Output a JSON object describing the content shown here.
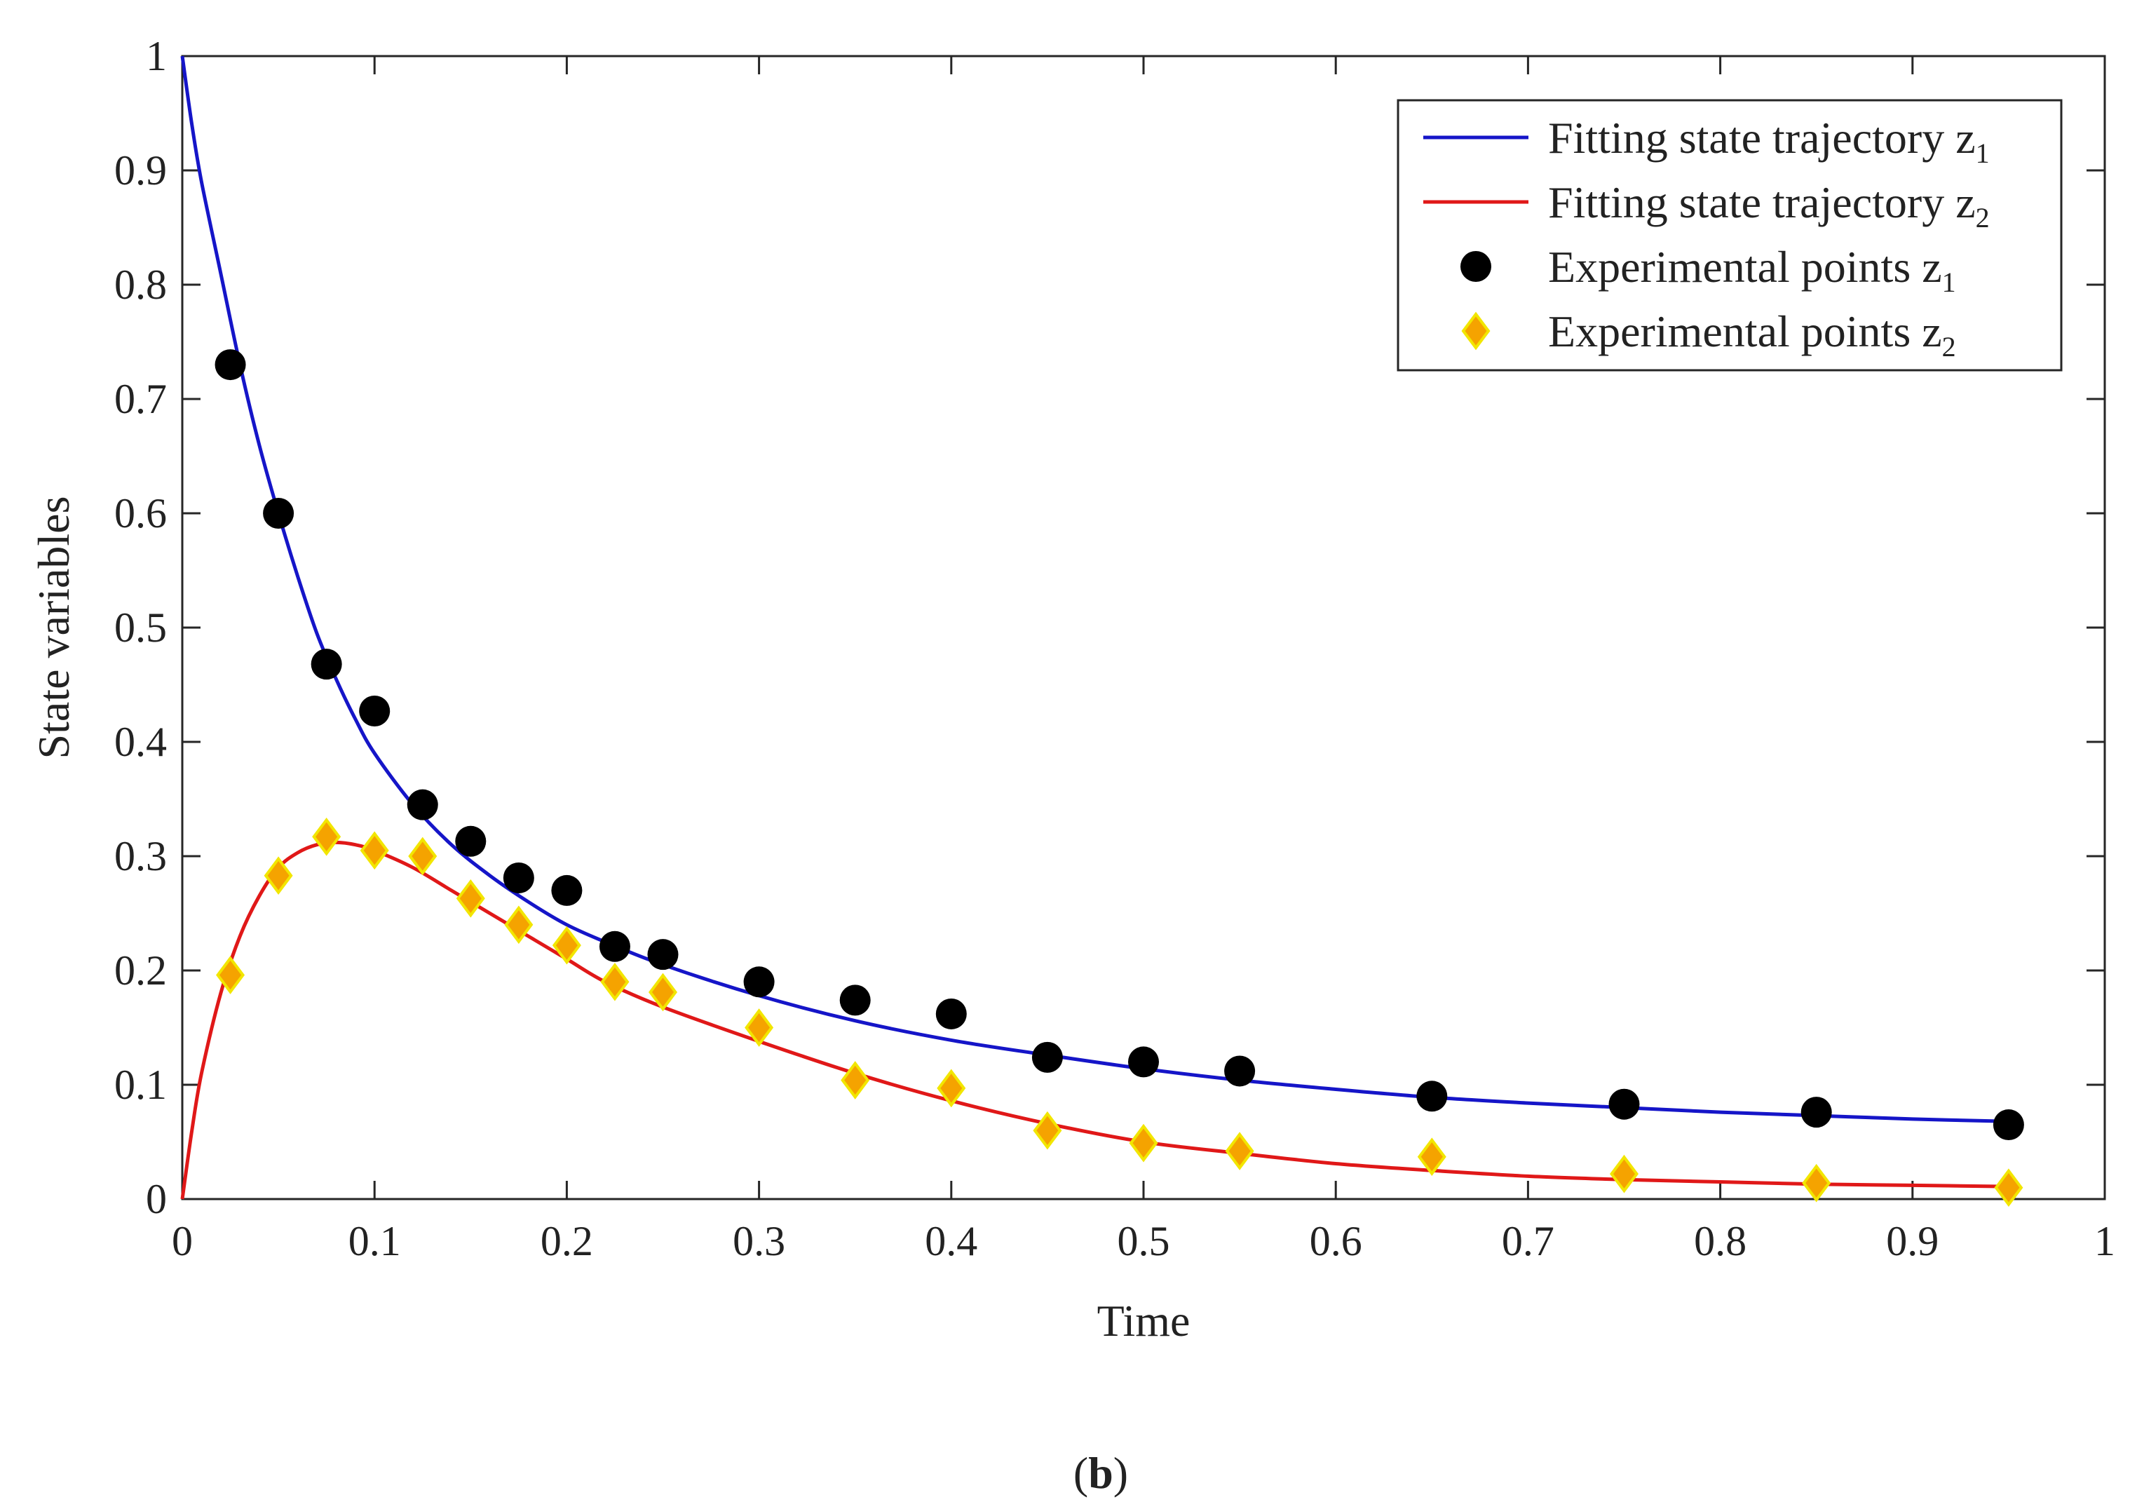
{
  "chart_data": {
    "type": "line",
    "xlabel": "Time",
    "ylabel": "State variables",
    "xlim": [
      0,
      1
    ],
    "ylim": [
      0,
      1
    ],
    "xticks": [
      "0",
      "0.1",
      "0.2",
      "0.3",
      "0.4",
      "0.5",
      "0.6",
      "0.7",
      "0.8",
      "0.9",
      "1"
    ],
    "yticks": [
      "0",
      "0.1",
      "0.2",
      "0.3",
      "0.4",
      "0.5",
      "0.6",
      "0.7",
      "0.8",
      "0.9",
      "1"
    ],
    "grid": false,
    "legend_position": "top-right",
    "caption": {
      "open": "(",
      "bold": "b",
      "close": ")"
    },
    "series": [
      {
        "name": "Fitting state trajectory z",
        "subscript": "1",
        "kind": "line",
        "color": "#1515c8",
        "x": [
          0,
          0.005,
          0.01,
          0.02,
          0.03,
          0.04,
          0.05,
          0.06,
          0.07,
          0.08,
          0.09,
          0.1,
          0.12,
          0.14,
          0.16,
          0.18,
          0.2,
          0.22,
          0.25,
          0.3,
          0.35,
          0.4,
          0.45,
          0.5,
          0.55,
          0.6,
          0.65,
          0.7,
          0.75,
          0.8,
          0.85,
          0.9,
          0.95
        ],
        "y": [
          1.0,
          0.94,
          0.89,
          0.81,
          0.73,
          0.66,
          0.6,
          0.545,
          0.495,
          0.455,
          0.42,
          0.39,
          0.345,
          0.31,
          0.283,
          0.26,
          0.24,
          0.225,
          0.205,
          0.178,
          0.156,
          0.139,
          0.126,
          0.114,
          0.104,
          0.096,
          0.089,
          0.084,
          0.08,
          0.076,
          0.073,
          0.07,
          0.068
        ]
      },
      {
        "name": "Fitting state trajectory z",
        "subscript": "2",
        "kind": "line",
        "color": "#e01818",
        "x": [
          0,
          0.005,
          0.01,
          0.02,
          0.03,
          0.04,
          0.05,
          0.06,
          0.07,
          0.08,
          0.09,
          0.1,
          0.12,
          0.14,
          0.16,
          0.18,
          0.2,
          0.22,
          0.25,
          0.3,
          0.35,
          0.4,
          0.45,
          0.5,
          0.55,
          0.6,
          0.65,
          0.7,
          0.75,
          0.8,
          0.85,
          0.9,
          0.95
        ],
        "y": [
          0,
          0.06,
          0.11,
          0.18,
          0.23,
          0.265,
          0.29,
          0.303,
          0.31,
          0.312,
          0.31,
          0.305,
          0.29,
          0.27,
          0.25,
          0.23,
          0.21,
          0.19,
          0.168,
          0.138,
          0.11,
          0.086,
          0.066,
          0.05,
          0.04,
          0.031,
          0.025,
          0.02,
          0.017,
          0.015,
          0.013,
          0.012,
          0.011
        ]
      },
      {
        "name": "Experimental points z",
        "subscript": "1",
        "kind": "scatter",
        "marker": "circle",
        "color": "#000000",
        "x": [
          0.025,
          0.05,
          0.075,
          0.1,
          0.125,
          0.15,
          0.175,
          0.2,
          0.225,
          0.25,
          0.3,
          0.35,
          0.4,
          0.45,
          0.5,
          0.55,
          0.65,
          0.75,
          0.85,
          0.95
        ],
        "y": [
          0.73,
          0.6,
          0.468,
          0.427,
          0.345,
          0.313,
          0.281,
          0.27,
          0.221,
          0.214,
          0.19,
          0.174,
          0.162,
          0.124,
          0.12,
          0.112,
          0.09,
          0.083,
          0.076,
          0.065
        ]
      },
      {
        "name": "Experimental points z",
        "subscript": "2",
        "kind": "scatter",
        "marker": "diamond",
        "color": "#f5a300",
        "edge_color": "#f2e600",
        "x": [
          0.025,
          0.05,
          0.075,
          0.1,
          0.125,
          0.15,
          0.175,
          0.2,
          0.225,
          0.25,
          0.3,
          0.35,
          0.4,
          0.45,
          0.5,
          0.55,
          0.65,
          0.75,
          0.85,
          0.95
        ],
        "y": [
          0.196,
          0.283,
          0.317,
          0.305,
          0.3,
          0.263,
          0.24,
          0.222,
          0.19,
          0.181,
          0.15,
          0.104,
          0.097,
          0.06,
          0.049,
          0.042,
          0.037,
          0.022,
          0.014,
          0.01
        ]
      }
    ]
  }
}
